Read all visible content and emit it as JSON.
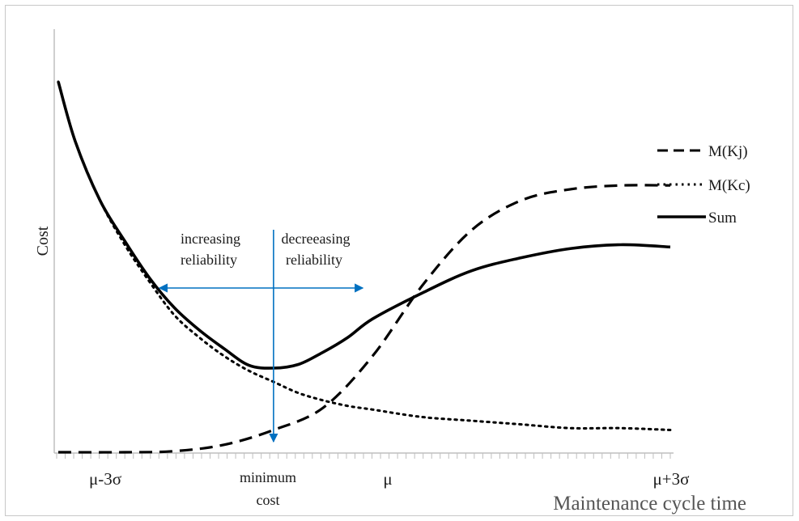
{
  "chart_data": {
    "type": "line",
    "xlabel": "Maintenance cycle time",
    "ylabel": "Cost",
    "x_ticks": [
      {
        "label": "μ-3σ",
        "x": -3
      },
      {
        "label": "μ",
        "x": 0
      },
      {
        "label": "μ+3σ",
        "x": 3
      }
    ],
    "xlim": [
      -3.17,
      3.0
    ],
    "ylim": [
      0,
      100
    ],
    "grid": false,
    "legend_position": "right",
    "series": [
      {
        "name": "M(Kj)",
        "style": "dashed",
        "color": "#000000",
        "x": [
          -3.17,
          -2.5,
          -2.0,
          -1.5,
          -1.0,
          -0.5,
          0.0,
          0.5,
          1.0,
          1.5,
          2.0,
          2.5,
          3.0
        ],
        "y": [
          0,
          0,
          0.3,
          2,
          6,
          12,
          26,
          45,
          60,
          68,
          71,
          72,
          72
        ]
      },
      {
        "name": "M(Kc)",
        "style": "dotted",
        "color": "#000000",
        "x": [
          -3.17,
          -3.0,
          -2.75,
          -2.5,
          -2.25,
          -2.0,
          -1.75,
          -1.5,
          -1.25,
          -1.0,
          -0.75,
          -0.5,
          -0.25,
          0.0,
          0.5,
          1.0,
          1.5,
          2.0,
          2.5,
          3.0
        ],
        "y": [
          100,
          84,
          68,
          56,
          46,
          37,
          31,
          26,
          22,
          19,
          16,
          14,
          12.5,
          11.5,
          9.5,
          8.5,
          7.5,
          6.5,
          6.5,
          6
        ]
      },
      {
        "name": "Sum",
        "style": "solid",
        "color": "#000000",
        "x": [
          -3.17,
          -3.0,
          -2.75,
          -2.5,
          -2.25,
          -2.0,
          -1.75,
          -1.5,
          -1.25,
          -1.0,
          -0.75,
          -0.5,
          -0.25,
          0.0,
          0.5,
          1.0,
          1.5,
          2.0,
          2.5,
          3.0
        ],
        "y": [
          100,
          84,
          68,
          57,
          47,
          39,
          33,
          28,
          23.5,
          22.7,
          23.7,
          27,
          31,
          36,
          43,
          49,
          52.5,
          55,
          56,
          55.4
        ]
      }
    ],
    "annotations": {
      "left_region": [
        "increasing",
        "reliability"
      ],
      "right_region": [
        "decreeasing",
        "reliability"
      ],
      "minimum": [
        "minimum",
        "cost"
      ],
      "color": "#0070c0",
      "minimum_x": -1.0,
      "arrow_span_x": [
        -2.15,
        -0.1
      ]
    }
  }
}
